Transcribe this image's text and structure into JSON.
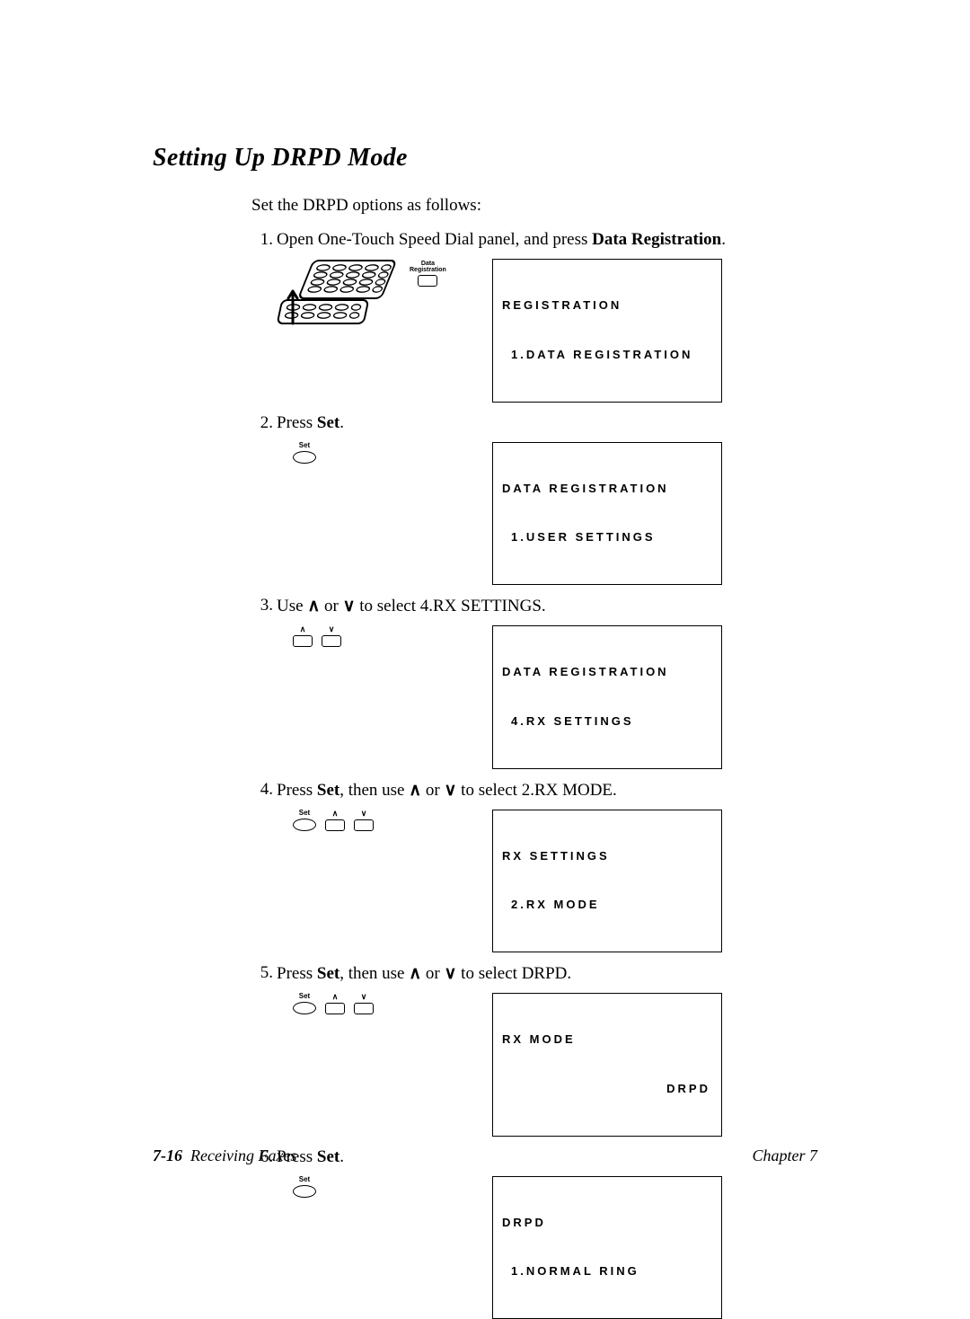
{
  "heading": "Setting Up DRPD Mode",
  "intro": "Set the DRPD options as follows:",
  "steps": [
    {
      "num": "1.",
      "parts": [
        {
          "t": "Open One-Touch Speed Dial panel, and press "
        },
        {
          "t": "Data Registration",
          "bold": true
        },
        {
          "t": "."
        }
      ],
      "controls": "panel",
      "panel_label": "Data\nRegistration",
      "display": {
        "line1": "REGISTRATION",
        "line2": "1.DATA REGISTRATION",
        "align2": "left"
      }
    },
    {
      "num": "2.",
      "parts": [
        {
          "t": "Press "
        },
        {
          "t": "Set",
          "bold": true
        },
        {
          "t": "."
        }
      ],
      "controls": "set",
      "display": {
        "line1": "DATA REGISTRATION",
        "line2": "1.USER SETTINGS",
        "align2": "left"
      }
    },
    {
      "num": "3.",
      "parts": [
        {
          "t": "Use "
        },
        {
          "t": "∧",
          "arrow": true
        },
        {
          "t": " or "
        },
        {
          "t": "∨",
          "arrow": true
        },
        {
          "t": " to select 4.RX SETTINGS."
        }
      ],
      "controls": "arrows",
      "display": {
        "line1": "DATA REGISTRATION",
        "line2": "4.RX SETTINGS",
        "align2": "left"
      }
    },
    {
      "num": "4.",
      "parts": [
        {
          "t": "Press "
        },
        {
          "t": "Set",
          "bold": true
        },
        {
          "t": ", then use "
        },
        {
          "t": "∧",
          "arrow": true
        },
        {
          "t": " or "
        },
        {
          "t": "∨",
          "arrow": true
        },
        {
          "t": " to select 2.RX MODE."
        }
      ],
      "controls": "set-arrows",
      "display": {
        "line1": "RX SETTINGS",
        "line2": "2.RX MODE",
        "align2": "left"
      }
    },
    {
      "num": "5.",
      "parts": [
        {
          "t": "Press "
        },
        {
          "t": "Set",
          "bold": true
        },
        {
          "t": ", then use "
        },
        {
          "t": "∧",
          "arrow": true
        },
        {
          "t": " or "
        },
        {
          "t": "∨",
          "arrow": true
        },
        {
          "t": " to select DRPD."
        }
      ],
      "controls": "set-arrows",
      "display": {
        "line1": "RX MODE",
        "line2": "DRPD",
        "align2": "right"
      }
    },
    {
      "num": "6.",
      "parts": [
        {
          "t": "Press "
        },
        {
          "t": "Set",
          "bold": true
        },
        {
          "t": "."
        }
      ],
      "controls": "set",
      "display": {
        "line1": "DRPD",
        "line2": "1.NORMAL RING",
        "align2": "left"
      }
    }
  ],
  "buttons": {
    "set_label": "Set",
    "up_glyph": "∧",
    "down_glyph": "∨"
  },
  "footer": {
    "pagenum": "7-16",
    "section": "Receiving Faxes",
    "chapter": "Chapter 7"
  },
  "colors": {
    "text": "#000000",
    "bg": "#ffffff",
    "border": "#000000"
  }
}
